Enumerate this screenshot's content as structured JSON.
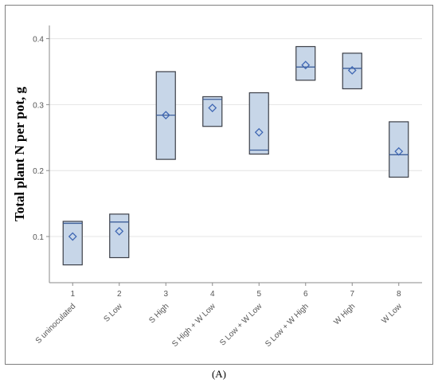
{
  "chart_data": {
    "type": "box",
    "ylabel": "Total plant N per pot, g",
    "ylim": [
      0.03,
      0.42
    ],
    "yticks": [
      0.1,
      0.2,
      0.3,
      0.4
    ],
    "grid": true,
    "categories": [
      {
        "tick": "1",
        "label": "S uninoculated"
      },
      {
        "tick": "2",
        "label": "S Low"
      },
      {
        "tick": "3",
        "label": "S High"
      },
      {
        "tick": "4",
        "label": "S High + W Low"
      },
      {
        "tick": "5",
        "label": "S Low + W Low"
      },
      {
        "tick": "6",
        "label": "S Low + W High"
      },
      {
        "tick": "7",
        "label": "W High"
      },
      {
        "tick": "8",
        "label": "W Low"
      }
    ],
    "boxes": [
      {
        "q1": 0.057,
        "median": 0.12,
        "q3": 0.123,
        "mean": 0.1
      },
      {
        "q1": 0.068,
        "median": 0.122,
        "q3": 0.134,
        "mean": 0.108
      },
      {
        "q1": 0.217,
        "median": 0.284,
        "q3": 0.35,
        "mean": 0.284
      },
      {
        "q1": 0.267,
        "median": 0.308,
        "q3": 0.312,
        "mean": 0.295
      },
      {
        "q1": 0.225,
        "median": 0.231,
        "q3": 0.318,
        "mean": 0.258
      },
      {
        "q1": 0.337,
        "median": 0.357,
        "q3": 0.388,
        "mean": 0.36
      },
      {
        "q1": 0.324,
        "median": 0.355,
        "q3": 0.378,
        "mean": 0.352
      },
      {
        "q1": 0.19,
        "median": 0.224,
        "q3": 0.274,
        "mean": 0.229
      }
    ],
    "colors": {
      "box_fill": "#c7d6e8",
      "box_stroke": "#3c3f48",
      "median": "#3e5f9a",
      "mean_marker": "#3f67b3",
      "grid": "#e4e4e4",
      "axis": "#8a8a8a",
      "text": "#555555"
    }
  },
  "caption": "(A)"
}
